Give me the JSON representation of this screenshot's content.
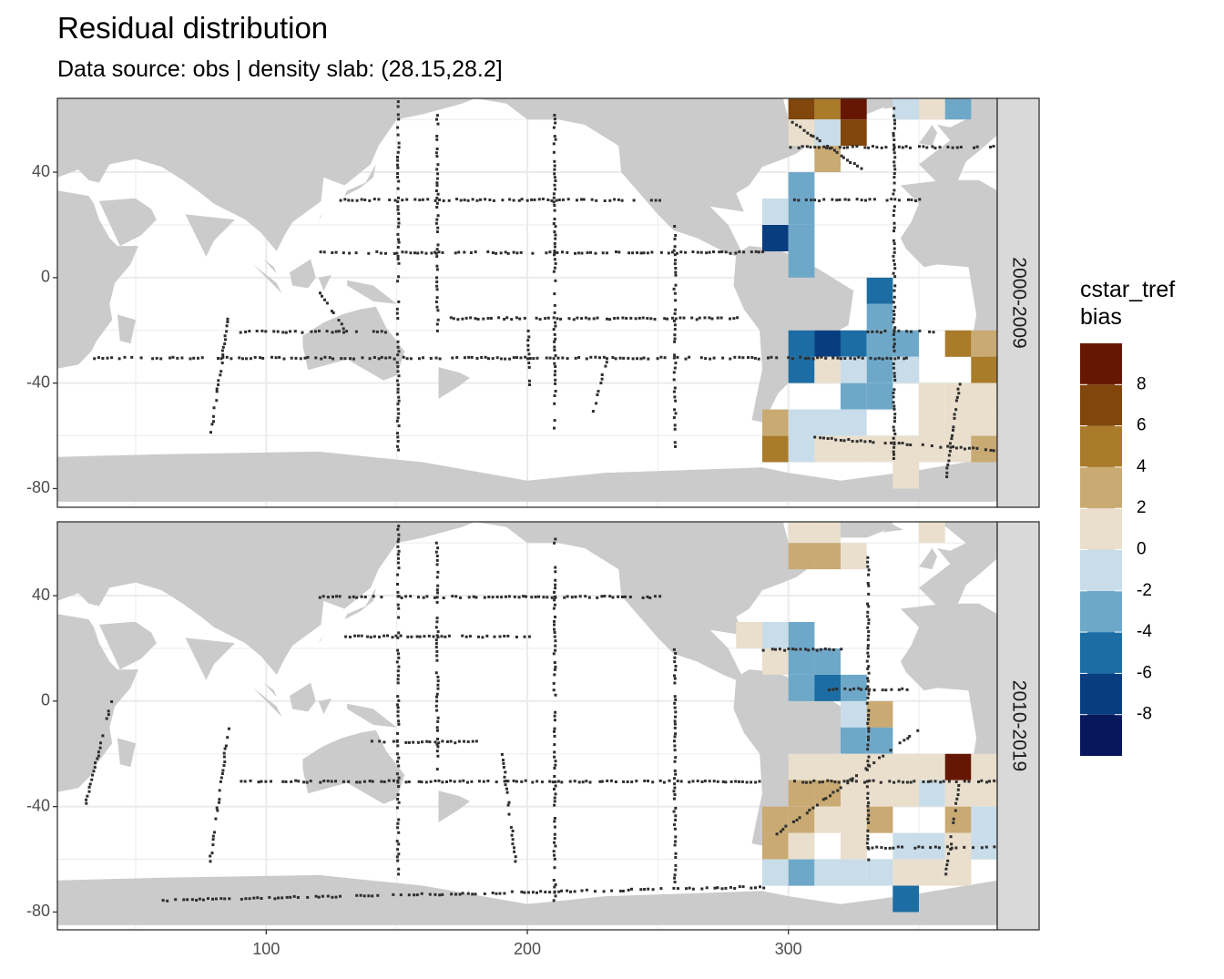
{
  "chart_data": {
    "type": "heatmap",
    "title": "Residual distribution",
    "subtitle": "Data source: obs | density slab: (28.15,28.2]",
    "xlabel": "",
    "ylabel": "",
    "xlim": [
      20,
      380
    ],
    "ylim": [
      -85,
      68
    ],
    "x_ticks": [
      100,
      200,
      300
    ],
    "y_ticks": [
      -80,
      -40,
      0,
      40
    ],
    "grid": true,
    "cell_size_deg": 10,
    "legend": {
      "title": "cstar_tref\nbias",
      "position": "right",
      "breaks": [
        -10,
        -8,
        -6,
        -4,
        -2,
        0,
        2,
        4,
        6,
        8,
        10
      ],
      "labels": [
        "8",
        "6",
        "4",
        "2",
        "0",
        "-2",
        "-4",
        "-6",
        "-8"
      ],
      "label_values": [
        8,
        6,
        4,
        2,
        0,
        -2,
        -4,
        -6,
        -8
      ],
      "colors": [
        "#08175c",
        "#083e80",
        "#1c6da3",
        "#6ea8c9",
        "#c8dde9",
        "#e9dfcc",
        "#c9aa73",
        "#a97b2a",
        "#80460c",
        "#661704"
      ]
    },
    "panels": [
      {
        "label": "2000-2009",
        "cells": [
          [
            305,
            65,
            7
          ],
          [
            315,
            65,
            5
          ],
          [
            325,
            65,
            9
          ],
          [
            345,
            65,
            -1
          ],
          [
            355,
            65,
            1
          ],
          [
            365,
            65,
            -3
          ],
          [
            305,
            55,
            1
          ],
          [
            315,
            55,
            -1
          ],
          [
            325,
            55,
            7
          ],
          [
            315,
            45,
            3
          ],
          [
            305,
            35,
            -3
          ],
          [
            295,
            25,
            -1
          ],
          [
            305,
            25,
            -3
          ],
          [
            295,
            15,
            -7
          ],
          [
            305,
            15,
            -3
          ],
          [
            305,
            5,
            -3
          ],
          [
            335,
            -5,
            -5
          ],
          [
            335,
            -15,
            -3
          ],
          [
            305,
            -25,
            -5
          ],
          [
            315,
            -25,
            -7
          ],
          [
            325,
            -25,
            -5
          ],
          [
            335,
            -25,
            -3
          ],
          [
            345,
            -25,
            -3
          ],
          [
            365,
            -25,
            5
          ],
          [
            375,
            -25,
            3
          ],
          [
            305,
            -35,
            -5
          ],
          [
            315,
            -35,
            0
          ],
          [
            325,
            -35,
            -1
          ],
          [
            335,
            -35,
            -3
          ],
          [
            345,
            -35,
            -1
          ],
          [
            375,
            -35,
            5
          ],
          [
            325,
            -45,
            -3
          ],
          [
            335,
            -45,
            -3
          ],
          [
            355,
            -45,
            1
          ],
          [
            365,
            -45,
            1
          ],
          [
            375,
            -45,
            1
          ],
          [
            295,
            -55,
            3
          ],
          [
            305,
            -55,
            -1
          ],
          [
            315,
            -55,
            -1
          ],
          [
            325,
            -55,
            -1
          ],
          [
            355,
            -55,
            1
          ],
          [
            365,
            -55,
            1
          ],
          [
            375,
            -55,
            1
          ],
          [
            295,
            -65,
            5
          ],
          [
            305,
            -65,
            -1
          ],
          [
            315,
            -65,
            1
          ],
          [
            325,
            -65,
            1
          ],
          [
            335,
            -65,
            1
          ],
          [
            345,
            -65,
            1
          ],
          [
            355,
            -65,
            1
          ],
          [
            365,
            -65,
            1
          ],
          [
            375,
            -65,
            3
          ],
          [
            345,
            -75,
            1
          ]
        ]
      },
      {
        "label": "2010-2019",
        "cells": [
          [
            305,
            65,
            1
          ],
          [
            315,
            65,
            1
          ],
          [
            355,
            65,
            1
          ],
          [
            305,
            55,
            3
          ],
          [
            315,
            55,
            3
          ],
          [
            325,
            55,
            1
          ],
          [
            285,
            25,
            1
          ],
          [
            295,
            25,
            -1
          ],
          [
            305,
            25,
            -3
          ],
          [
            295,
            15,
            1
          ],
          [
            305,
            15,
            -3
          ],
          [
            315,
            15,
            -3
          ],
          [
            305,
            5,
            -3
          ],
          [
            315,
            5,
            -5
          ],
          [
            325,
            5,
            -3
          ],
          [
            325,
            -5,
            -1
          ],
          [
            335,
            -5,
            3
          ],
          [
            325,
            -15,
            -3
          ],
          [
            335,
            -15,
            -3
          ],
          [
            305,
            -25,
            1
          ],
          [
            315,
            -25,
            1
          ],
          [
            325,
            -25,
            1
          ],
          [
            335,
            -25,
            1
          ],
          [
            345,
            -25,
            1
          ],
          [
            355,
            -25,
            1
          ],
          [
            365,
            -25,
            9
          ],
          [
            375,
            -25,
            1
          ],
          [
            305,
            -35,
            3
          ],
          [
            315,
            -35,
            3
          ],
          [
            325,
            -35,
            1
          ],
          [
            335,
            -35,
            1
          ],
          [
            345,
            -35,
            1
          ],
          [
            355,
            -35,
            -1
          ],
          [
            365,
            -35,
            1
          ],
          [
            375,
            -35,
            1
          ],
          [
            295,
            -45,
            3
          ],
          [
            305,
            -45,
            3
          ],
          [
            315,
            -45,
            1
          ],
          [
            325,
            -45,
            1
          ],
          [
            335,
            -45,
            3
          ],
          [
            365,
            -45,
            3
          ],
          [
            375,
            -45,
            -1
          ],
          [
            295,
            -55,
            3
          ],
          [
            305,
            -55,
            0
          ],
          [
            325,
            -55,
            1
          ],
          [
            345,
            -55,
            -1
          ],
          [
            355,
            -55,
            -1
          ],
          [
            365,
            -55,
            1
          ],
          [
            375,
            -55,
            -1
          ],
          [
            295,
            -65,
            -1
          ],
          [
            305,
            -65,
            -3
          ],
          [
            315,
            -65,
            -1
          ],
          [
            325,
            -65,
            -1
          ],
          [
            335,
            -65,
            -1
          ],
          [
            345,
            -65,
            1
          ],
          [
            355,
            -65,
            1
          ],
          [
            365,
            -65,
            1
          ],
          [
            345,
            -75,
            -5
          ]
        ]
      }
    ]
  },
  "colors": {
    "land": "#cbcbcb",
    "ocean": "#ffffff",
    "grid": "#ebebeb",
    "track": "#2e2e2e",
    "strip": "#d9d9d9",
    "border": "#333333"
  }
}
